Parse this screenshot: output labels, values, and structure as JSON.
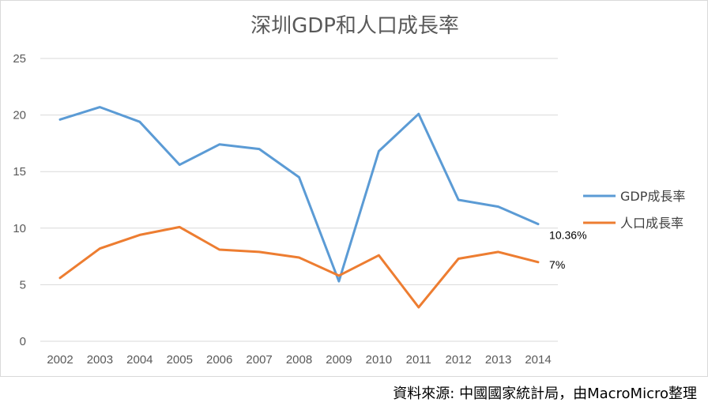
{
  "chart_data": {
    "type": "line",
    "title": "深圳GDP和人口成長率",
    "xlabel": "",
    "ylabel": "",
    "categories": [
      "2002",
      "2003",
      "2004",
      "2005",
      "2006",
      "2007",
      "2008",
      "2009",
      "2010",
      "2011",
      "2012",
      "2013",
      "2014"
    ],
    "ylim": [
      0,
      25
    ],
    "yticks": [
      "0",
      "5",
      "10",
      "15",
      "20",
      "25"
    ],
    "grid": true,
    "legend_position": "right",
    "series": [
      {
        "name": "GDP成長率",
        "color": "#5B9BD5",
        "values": [
          19.6,
          20.7,
          19.4,
          15.6,
          17.4,
          17.0,
          14.5,
          5.3,
          16.8,
          20.1,
          12.5,
          11.9,
          10.36
        ],
        "end_label": "10.36%"
      },
      {
        "name": "人口成長率",
        "color": "#ED7D31",
        "values": [
          5.6,
          8.2,
          9.4,
          10.1,
          8.1,
          7.9,
          7.4,
          5.8,
          7.6,
          3.0,
          7.3,
          7.9,
          7.0
        ],
        "end_label": "7%"
      }
    ]
  },
  "source_note": "資料來源: 中國國家統計局，由MacroMicro整理"
}
